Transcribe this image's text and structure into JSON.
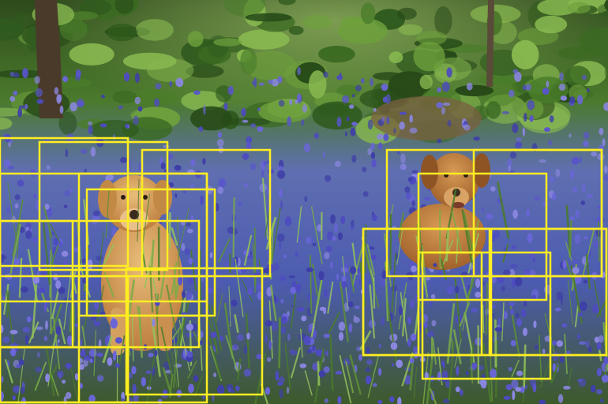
{
  "image": {
    "description_colors": {
      "foliage_dark": "#1f3a17",
      "foliage_mid": "#3f6b25",
      "foliage_light": "#7fb04a",
      "bluebell": "#5b56c9",
      "bluebell_light": "#8a86e0",
      "dog_coat": "#d9a45e",
      "dog_coat_dark": "#b9783a",
      "trunk": "#4a3a2a",
      "box_stroke": "#ffee22"
    }
  },
  "subjects": [
    {
      "name": "dog-left"
    },
    {
      "name": "dog-right"
    }
  ]
}
